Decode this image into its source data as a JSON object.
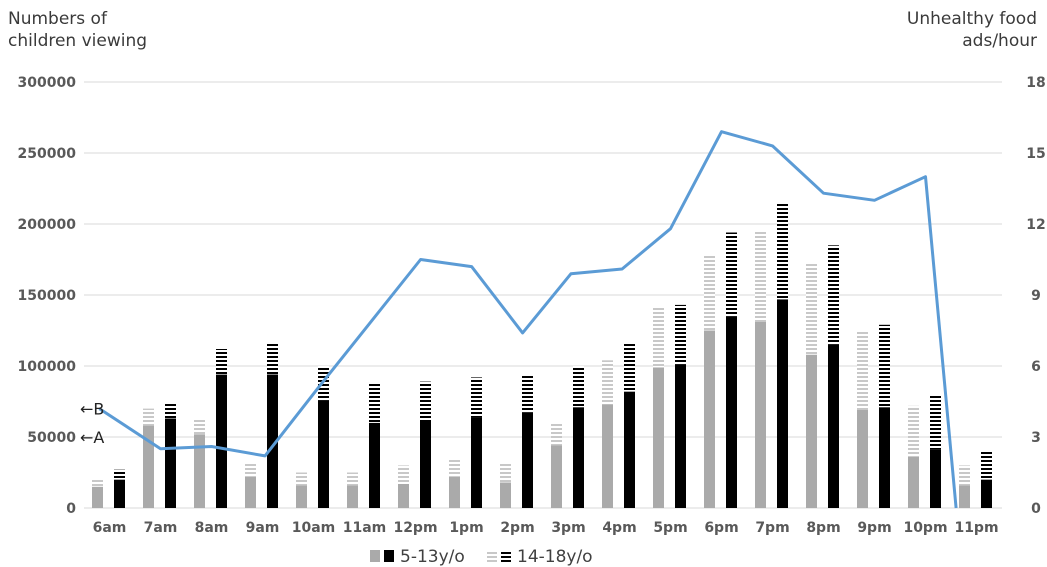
{
  "chart_data": {
    "type": "bar",
    "ylabel_left": [
      "Numbers of",
      "children viewing"
    ],
    "ylabel_right": [
      "Unhealthy food",
      "ads/hour"
    ],
    "categories": [
      "6am",
      "7am",
      "8am",
      "9am",
      "10am",
      "11am",
      "12pm",
      "1pm",
      "2pm",
      "3pm",
      "4pm",
      "5pm",
      "6pm",
      "7pm",
      "8pm",
      "9pm",
      "10pm",
      "11pm"
    ],
    "ylim_left": [
      0,
      300000
    ],
    "yticks_left": [
      0,
      50000,
      100000,
      150000,
      200000,
      250000,
      300000
    ],
    "ylim_right": [
      0,
      18
    ],
    "yticks_right": [
      0,
      3,
      6,
      9,
      12,
      15,
      18
    ],
    "markers": [
      {
        "label": "←B",
        "value": 70000
      },
      {
        "label": "←A",
        "value": 50000
      }
    ],
    "colors": {
      "gray": "#aaaaaa",
      "gray_stripe": "#cfcfcf",
      "black": "#000000",
      "line": "#5b9bd5",
      "grid": "#d9d9d9"
    },
    "bar_groups": [
      {
        "segments": [
          {
            "value": 15000,
            "style": "gray"
          },
          {
            "value": 5000,
            "style": "gray-striped"
          }
        ]
      },
      {
        "segments": [
          {
            "value": 20000,
            "style": "black"
          },
          {
            "value": 7000,
            "style": "black-striped"
          }
        ]
      },
      {
        "segments": [
          {
            "value": 58000,
            "style": "gray"
          },
          {
            "value": 12000,
            "style": "gray-striped"
          }
        ]
      },
      {
        "segments": [
          {
            "value": 63000,
            "style": "black"
          },
          {
            "value": 11000,
            "style": "black-striped"
          }
        ]
      },
      {
        "segments": [
          {
            "value": 52000,
            "style": "gray"
          },
          {
            "value": 10000,
            "style": "gray-striped"
          }
        ]
      },
      {
        "segments": [
          {
            "value": 94000,
            "style": "black"
          },
          {
            "value": 18000,
            "style": "black-striped"
          }
        ]
      },
      {
        "segments": [
          {
            "value": 22000,
            "style": "gray"
          },
          {
            "value": 10000,
            "style": "gray-striped"
          }
        ]
      },
      {
        "segments": [
          {
            "value": 94000,
            "style": "black"
          },
          {
            "value": 22000,
            "style": "black-striped"
          }
        ]
      },
      {
        "segments": [
          {
            "value": 16000,
            "style": "gray"
          },
          {
            "value": 9000,
            "style": "gray-striped"
          }
        ]
      },
      {
        "segments": [
          {
            "value": 76000,
            "style": "black"
          },
          {
            "value": 24000,
            "style": "black-striped"
          }
        ]
      },
      {
        "segments": [
          {
            "value": 16000,
            "style": "gray"
          },
          {
            "value": 9000,
            "style": "gray-striped"
          }
        ]
      },
      {
        "segments": [
          {
            "value": 60000,
            "style": "black"
          },
          {
            "value": 28000,
            "style": "black-striped"
          }
        ]
      },
      {
        "segments": [
          {
            "value": 17000,
            "style": "gray"
          },
          {
            "value": 13000,
            "style": "gray-striped"
          }
        ]
      },
      {
        "segments": [
          {
            "value": 62000,
            "style": "black"
          },
          {
            "value": 27000,
            "style": "black-striped"
          }
        ]
      },
      {
        "segments": [
          {
            "value": 22000,
            "style": "gray"
          },
          {
            "value": 12000,
            "style": "gray-striped"
          }
        ]
      },
      {
        "segments": [
          {
            "value": 64000,
            "style": "black"
          },
          {
            "value": 28000,
            "style": "black-striped"
          }
        ]
      },
      {
        "segments": [
          {
            "value": 18000,
            "style": "gray"
          },
          {
            "value": 14000,
            "style": "gray-striped"
          }
        ]
      },
      {
        "segments": [
          {
            "value": 67000,
            "style": "black"
          },
          {
            "value": 27000,
            "style": "black-striped"
          }
        ]
      },
      {
        "segments": [
          {
            "value": 44000,
            "style": "gray"
          },
          {
            "value": 16000,
            "style": "gray-striped"
          }
        ]
      },
      {
        "segments": [
          {
            "value": 71000,
            "style": "black"
          },
          {
            "value": 29000,
            "style": "black-striped"
          }
        ]
      },
      {
        "segments": [
          {
            "value": 73000,
            "style": "gray"
          },
          {
            "value": 31000,
            "style": "gray-striped"
          }
        ]
      },
      {
        "segments": [
          {
            "value": 82000,
            "style": "black"
          },
          {
            "value": 34000,
            "style": "black-striped"
          }
        ]
      },
      {
        "segments": [
          {
            "value": 99000,
            "style": "gray"
          },
          {
            "value": 42000,
            "style": "gray-striped"
          }
        ]
      },
      {
        "segments": [
          {
            "value": 101000,
            "style": "black"
          },
          {
            "value": 42000,
            "style": "black-striped"
          }
        ]
      },
      {
        "segments": [
          {
            "value": 125000,
            "style": "gray"
          },
          {
            "value": 53000,
            "style": "gray-striped"
          }
        ]
      },
      {
        "segments": [
          {
            "value": 135000,
            "style": "black"
          },
          {
            "value": 59000,
            "style": "black-striped"
          }
        ]
      },
      {
        "segments": [
          {
            "value": 131000,
            "style": "gray"
          },
          {
            "value": 64000,
            "style": "gray-striped"
          }
        ]
      },
      {
        "segments": [
          {
            "value": 147000,
            "style": "black"
          },
          {
            "value": 68000,
            "style": "black-striped"
          }
        ]
      },
      {
        "segments": [
          {
            "value": 108000,
            "style": "gray"
          },
          {
            "value": 64000,
            "style": "gray-striped"
          }
        ]
      },
      {
        "segments": [
          {
            "value": 115000,
            "style": "black"
          },
          {
            "value": 70000,
            "style": "black-striped"
          }
        ]
      },
      {
        "segments": [
          {
            "value": 69000,
            "style": "gray"
          },
          {
            "value": 56000,
            "style": "gray-striped"
          }
        ]
      },
      {
        "segments": [
          {
            "value": 71000,
            "style": "black"
          },
          {
            "value": 58000,
            "style": "black-striped"
          }
        ]
      },
      {
        "segments": [
          {
            "value": 36000,
            "style": "gray"
          },
          {
            "value": 36000,
            "style": "gray-striped"
          }
        ]
      },
      {
        "segments": [
          {
            "value": 41000,
            "style": "black"
          },
          {
            "value": 38000,
            "style": "black-striped"
          }
        ]
      },
      {
        "segments": [
          {
            "value": 16000,
            "style": "gray"
          },
          {
            "value": 14000,
            "style": "gray-striped"
          }
        ]
      },
      {
        "segments": [
          {
            "value": 20000,
            "style": "black"
          },
          {
            "value": 20000,
            "style": "black-striped"
          }
        ]
      }
    ],
    "line": {
      "x_positions": [
        0.3,
        1.5,
        2.5,
        3.55,
        4.6,
        5.6,
        6.6,
        7.6,
        8.6,
        9.55,
        10.55,
        11.5,
        12.5,
        13.5,
        14.5,
        15.5,
        16.5,
        17.1
      ],
      "values": [
        4.2,
        2.5,
        2.6,
        2.2,
        5.1,
        7.8,
        10.5,
        10.2,
        7.4,
        9.9,
        10.1,
        11.8,
        15.9,
        15.3,
        13.3,
        13.0,
        14.0,
        0
      ]
    },
    "legend": [
      {
        "label": "5-13y/o",
        "swatches": [
          "gray",
          "black"
        ]
      },
      {
        "label": "14-18y/o",
        "swatches": [
          "gray-striped",
          "black-striped"
        ]
      }
    ]
  }
}
